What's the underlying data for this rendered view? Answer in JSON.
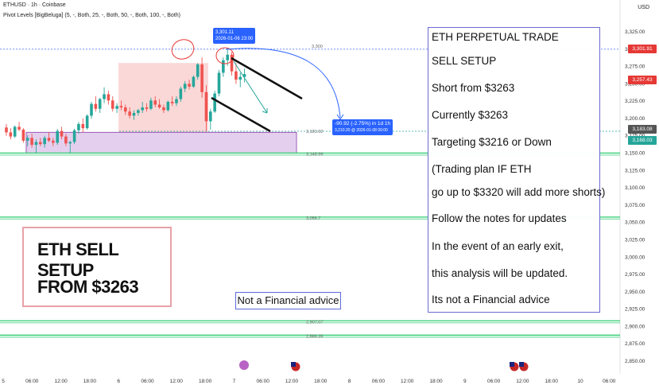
{
  "header": {
    "title": "ETHUSD · 1h · Coinbase",
    "indicator": "Pivot Levels [BigBeluga] (5, -, Both, 25, -, Both, 50, -, Both, 100, -, Both)",
    "currency": "USD"
  },
  "left_box": {
    "line1": "ETH SELL SETUP",
    "line2": "FROM $3263"
  },
  "mid_box": {
    "text": "Not a Financial advice"
  },
  "right_box": {
    "lines": [
      "ETH PERPETUAL TRADE",
      "SELL SETUP",
      "Short from $3263",
      "Currently $3263",
      "Targeting $3216 or Down",
      "(Trading plan IF ETH",
      "go up to $3320 will add more shorts)",
      "Follow the notes for updates",
      "In the event of an early exit,",
      "this analysis will be updated.",
      "Its not a Financial advice"
    ]
  },
  "tooltips": {
    "high": {
      "line1": "3,301.11",
      "line2": "2026-01-06 23:00"
    },
    "measure": {
      "line1": "-90.92 (-2.75%) in 1d 1h",
      "line2": "3,210.20 @ 2026-01-08 00:00"
    }
  },
  "price_labels": [
    {
      "text": "3,301.91",
      "color": "#e53935"
    },
    {
      "text": "3,257.43",
      "color": "#e53935"
    },
    {
      "text": "3,183.08",
      "color": "#555555"
    },
    {
      "text": "3,168.03",
      "color": "#26a69a"
    }
  ],
  "level_labels": [
    "3,300",
    "3,181.62",
    "3,148.99",
    "3,056.7",
    "2,907.07",
    "2,886.35"
  ],
  "chart_data": {
    "type": "candlestick",
    "title": "ETHUSD · 1h · Coinbase",
    "y_axis": {
      "ticks": [
        "3,325.00",
        "3,300.00",
        "3,275.00",
        "3,250.00",
        "3,225.00",
        "3,200.00",
        "3,175.00",
        "3,150.00",
        "3,125.00",
        "3,100.00",
        "3,075.00",
        "3,050.00",
        "3,025.00",
        "3,000.00",
        "2,975.00",
        "2,950.00",
        "2,925.00",
        "2,900.00",
        "2,875.00",
        "2,850.00"
      ],
      "range": [
        2850,
        3325
      ]
    },
    "x_axis": {
      "ticks": [
        "5",
        "06:00",
        "12:00",
        "18:00",
        "6",
        "06:00",
        "12:00",
        "18:00",
        "7",
        "06:00",
        "12:00",
        "18:00",
        "8",
        "06:00",
        "12:00",
        "18:00",
        "9",
        "06:00",
        "12:00",
        "18:00",
        "10",
        "06:00"
      ]
    },
    "levels": [
      {
        "value": 3300,
        "label": "3,300",
        "style": "dashed",
        "color": "#5c7cfa"
      },
      {
        "value": 3181.62,
        "label": "3,181.62",
        "style": "dashed",
        "color": "#26a69a"
      },
      {
        "value": 3148.99,
        "label": "3,148.99",
        "color": "#2ecc71"
      },
      {
        "value": 3056.7,
        "label": "3,056.7",
        "color": "#2ecc71"
      },
      {
        "value": 2907.07,
        "label": "2,907.07",
        "color": "#2ecc71"
      },
      {
        "value": 2886.35,
        "label": "2,886.35",
        "color": "#2ecc71"
      }
    ],
    "candles": [
      [
        3187,
        3192,
        3175,
        3180
      ],
      [
        3180,
        3186,
        3170,
        3174
      ],
      [
        3174,
        3190,
        3172,
        3188
      ],
      [
        3188,
        3195,
        3182,
        3184
      ],
      [
        3184,
        3186,
        3165,
        3168
      ],
      [
        3168,
        3176,
        3160,
        3172
      ],
      [
        3172,
        3178,
        3158,
        3162
      ],
      [
        3162,
        3170,
        3150,
        3166
      ],
      [
        3166,
        3172,
        3160,
        3163
      ],
      [
        3163,
        3175,
        3158,
        3172
      ],
      [
        3172,
        3180,
        3166,
        3168
      ],
      [
        3168,
        3172,
        3160,
        3165
      ],
      [
        3165,
        3185,
        3162,
        3182
      ],
      [
        3182,
        3188,
        3170,
        3174
      ],
      [
        3174,
        3178,
        3160,
        3164
      ],
      [
        3164,
        3168,
        3150,
        3166
      ],
      [
        3166,
        3185,
        3163,
        3183
      ],
      [
        3183,
        3195,
        3178,
        3192
      ],
      [
        3192,
        3200,
        3180,
        3186
      ],
      [
        3186,
        3206,
        3184,
        3204
      ],
      [
        3204,
        3224,
        3200,
        3221
      ],
      [
        3221,
        3232,
        3210,
        3214
      ],
      [
        3214,
        3230,
        3208,
        3228
      ],
      [
        3228,
        3245,
        3222,
        3235
      ],
      [
        3235,
        3240,
        3220,
        3226
      ],
      [
        3226,
        3232,
        3210,
        3214
      ],
      [
        3214,
        3222,
        3208,
        3218
      ],
      [
        3218,
        3226,
        3212,
        3216
      ],
      [
        3216,
        3220,
        3205,
        3210
      ],
      [
        3210,
        3216,
        3200,
        3204
      ],
      [
        3204,
        3212,
        3198,
        3208
      ],
      [
        3208,
        3214,
        3204,
        3212
      ],
      [
        3212,
        3224,
        3208,
        3216
      ],
      [
        3216,
        3222,
        3210,
        3214
      ],
      [
        3214,
        3230,
        3212,
        3226
      ],
      [
        3226,
        3232,
        3216,
        3220
      ],
      [
        3220,
        3228,
        3214,
        3216
      ],
      [
        3216,
        3220,
        3208,
        3212
      ],
      [
        3212,
        3226,
        3210,
        3224
      ],
      [
        3224,
        3232,
        3218,
        3222
      ],
      [
        3222,
        3232,
        3218,
        3228
      ],
      [
        3228,
        3246,
        3224,
        3243
      ],
      [
        3243,
        3254,
        3238,
        3250
      ],
      [
        3250,
        3256,
        3242,
        3246
      ],
      [
        3246,
        3262,
        3244,
        3260
      ],
      [
        3260,
        3280,
        3256,
        3278
      ],
      [
        3278,
        3288,
        3230,
        3238
      ],
      [
        3238,
        3248,
        3182,
        3196
      ],
      [
        3196,
        3214,
        3184,
        3210
      ],
      [
        3210,
        3240,
        3208,
        3236
      ],
      [
        3236,
        3270,
        3232,
        3266
      ],
      [
        3266,
        3288,
        3260,
        3284
      ],
      [
        3284,
        3301,
        3276,
        3292
      ],
      [
        3292,
        3296,
        3262,
        3268
      ],
      [
        3268,
        3280,
        3250,
        3256
      ],
      [
        3256,
        3266,
        3245,
        3260
      ],
      [
        3260,
        3272,
        3252,
        3264
      ]
    ],
    "annotations": {
      "tooltip_high": "3,301.11 · 2026-01-06 23:00",
      "measure": "-90.92 (-2.75%) in 1d 1h · 3,210.20 @ 2026-01-08 00:00"
    }
  }
}
